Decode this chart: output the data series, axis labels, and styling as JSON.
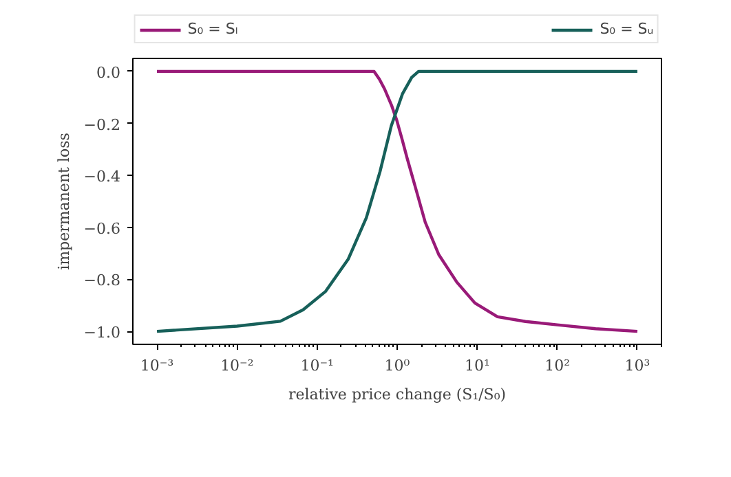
{
  "chart_data": {
    "type": "line",
    "xlabel": "relative price change (S₁/S₀)",
    "ylabel": "impermanent loss",
    "log": "x",
    "grid": false,
    "legend": "top",
    "marker": "none",
    "line_style": "solid",
    "xlim": [
      0.0005,
      2000
    ],
    "ylim": [
      -1.05,
      0.05
    ],
    "xticks": [
      {
        "value": 0.001,
        "label": "10⁻³"
      },
      {
        "value": 0.01,
        "label": "10⁻²"
      },
      {
        "value": 0.1,
        "label": "10⁻¹"
      },
      {
        "value": 1,
        "label": "10⁰"
      },
      {
        "value": 10,
        "label": "10¹"
      },
      {
        "value": 100,
        "label": "10²"
      },
      {
        "value": 1000,
        "label": "10³"
      }
    ],
    "yticks": [
      {
        "value": 0,
        "label": "0.0"
      },
      {
        "value": -0.2,
        "label": "−0.2"
      },
      {
        "value": -0.4,
        "label": "−0.4"
      },
      {
        "value": -0.6,
        "label": "−0.6"
      },
      {
        "value": -0.8,
        "label": "−0.8"
      },
      {
        "value": -1,
        "label": "−1.0"
      }
    ],
    "series": [
      {
        "name": "S₀ = Sₗ",
        "color": "#991a78",
        "x": [
          0.001,
          0.515,
          0.6,
          0.695,
          0.85,
          0.989,
          1.15,
          1.33,
          1.73,
          2.24,
          3.31,
          5.57,
          9.35,
          17.9,
          40,
          100,
          300,
          1000
        ],
        "values": [
          0,
          0,
          -0.03,
          -0.067,
          -0.13,
          -0.188,
          -0.26,
          -0.333,
          -0.457,
          -0.58,
          -0.705,
          -0.811,
          -0.891,
          -0.944,
          -0.962,
          -0.975,
          -0.99,
          -1.0
        ]
      },
      {
        "name": "S₀ = Sᵤ",
        "color": "#17605a",
        "x": [
          0.001,
          0.01,
          0.0348,
          0.0668,
          0.128,
          0.245,
          0.412,
          0.61,
          0.845,
          1.17,
          1.52,
          1.85,
          1000
        ],
        "values": [
          -1.0,
          -0.98,
          -0.961,
          -0.917,
          -0.846,
          -0.722,
          -0.563,
          -0.386,
          -0.209,
          -0.085,
          -0.023,
          0,
          0
        ]
      }
    ]
  }
}
